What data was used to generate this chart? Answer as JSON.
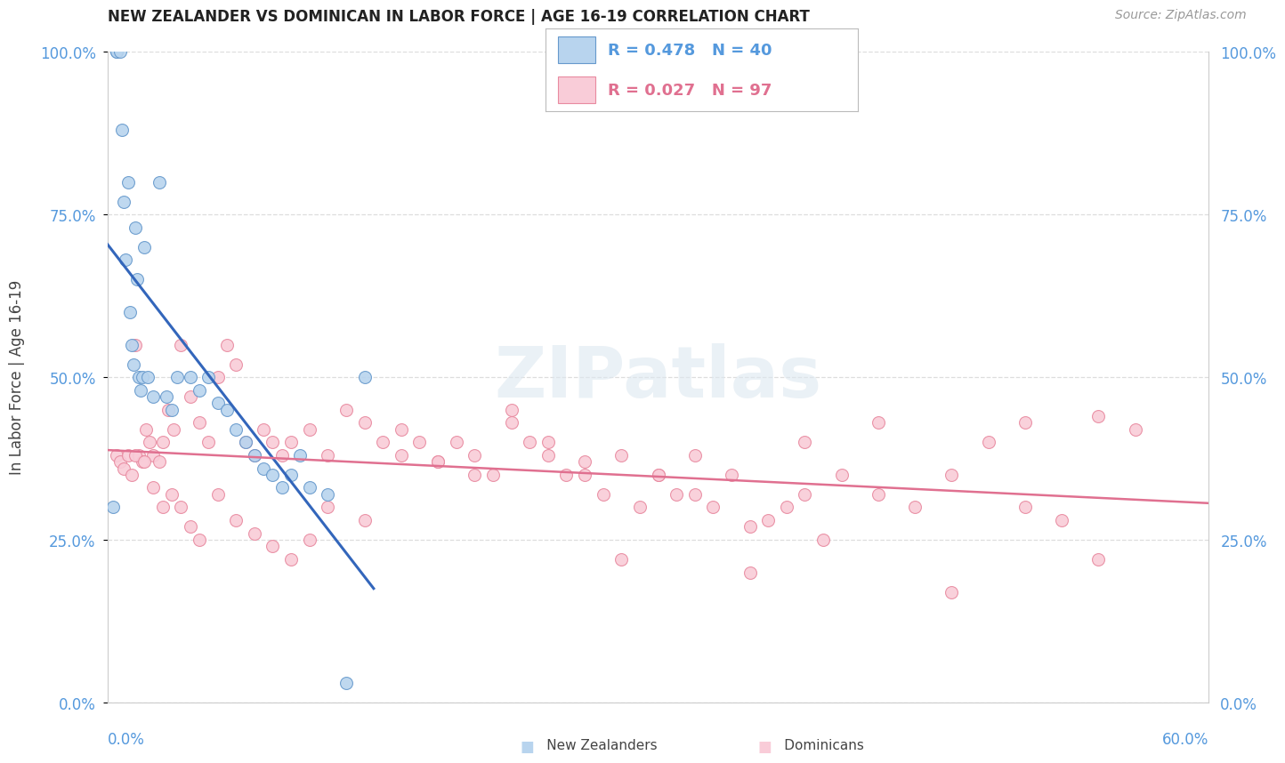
{
  "title": "NEW ZEALANDER VS DOMINICAN IN LABOR FORCE | AGE 16-19 CORRELATION CHART",
  "source": "Source: ZipAtlas.com",
  "ylabel": "In Labor Force | Age 16-19",
  "ytick_labels": [
    "0.0%",
    "25.0%",
    "50.0%",
    "75.0%",
    "100.0%"
  ],
  "ytick_vals": [
    0.0,
    25.0,
    50.0,
    75.0,
    100.0
  ],
  "xtick_left": "0.0%",
  "xtick_right": "60.0%",
  "xlim": [
    0.0,
    60.0
  ],
  "ylim": [
    0.0,
    100.0
  ],
  "watermark": "ZIPatlas",
  "legend_nz_R": "0.478",
  "legend_nz_N": "40",
  "legend_dom_R": "0.027",
  "legend_dom_N": "97",
  "nz_color": "#b8d4ee",
  "nz_edge_color": "#6699cc",
  "nz_line_color": "#3366bb",
  "dom_color": "#f9ccd8",
  "dom_edge_color": "#e88aa0",
  "dom_line_color": "#e07090",
  "background": "#ffffff",
  "grid_color": "#dddddd",
  "title_color": "#222222",
  "tick_color": "#5599dd",
  "nz_x": [
    0.3,
    0.5,
    0.5,
    0.7,
    0.8,
    0.9,
    1.0,
    1.1,
    1.2,
    1.3,
    1.4,
    1.5,
    1.6,
    1.7,
    1.8,
    1.9,
    2.0,
    2.2,
    2.5,
    2.8,
    3.2,
    3.5,
    3.8,
    4.5,
    5.0,
    5.5,
    6.0,
    6.5,
    7.0,
    7.5,
    8.0,
    8.5,
    9.0,
    9.5,
    10.0,
    10.5,
    11.0,
    12.0,
    13.0,
    14.0
  ],
  "nz_y": [
    30.0,
    100.0,
    100.0,
    100.0,
    88.0,
    77.0,
    68.0,
    80.0,
    60.0,
    55.0,
    52.0,
    73.0,
    65.0,
    50.0,
    48.0,
    50.0,
    70.0,
    50.0,
    47.0,
    80.0,
    47.0,
    45.0,
    50.0,
    50.0,
    48.0,
    50.0,
    46.0,
    45.0,
    42.0,
    40.0,
    38.0,
    36.0,
    35.0,
    33.0,
    35.0,
    38.0,
    33.0,
    32.0,
    3.0,
    50.0
  ],
  "dom_x": [
    0.5,
    0.7,
    0.9,
    1.1,
    1.3,
    1.5,
    1.7,
    1.9,
    2.1,
    2.3,
    2.5,
    2.8,
    3.0,
    3.3,
    3.6,
    4.0,
    4.5,
    5.0,
    5.5,
    6.0,
    6.5,
    7.0,
    7.5,
    8.0,
    8.5,
    9.0,
    9.5,
    10.0,
    11.0,
    12.0,
    13.0,
    14.0,
    15.0,
    16.0,
    17.0,
    18.0,
    19.0,
    20.0,
    21.0,
    22.0,
    23.0,
    24.0,
    25.0,
    26.0,
    27.0,
    28.0,
    29.0,
    30.0,
    31.0,
    32.0,
    33.0,
    34.0,
    35.0,
    36.0,
    37.0,
    38.0,
    39.0,
    40.0,
    42.0,
    44.0,
    46.0,
    48.0,
    50.0,
    52.0,
    54.0,
    56.0,
    1.5,
    2.0,
    2.5,
    3.0,
    3.5,
    4.0,
    4.5,
    5.0,
    6.0,
    7.0,
    8.0,
    9.0,
    10.0,
    11.0,
    12.0,
    14.0,
    16.0,
    18.0,
    20.0,
    22.0,
    24.0,
    26.0,
    28.0,
    30.0,
    32.0,
    35.0,
    38.0,
    42.0,
    46.0,
    50.0,
    54.0
  ],
  "dom_y": [
    38.0,
    37.0,
    36.0,
    38.0,
    35.0,
    55.0,
    38.0,
    37.0,
    42.0,
    40.0,
    38.0,
    37.0,
    40.0,
    45.0,
    42.0,
    55.0,
    47.0,
    43.0,
    40.0,
    50.0,
    55.0,
    52.0,
    40.0,
    38.0,
    42.0,
    40.0,
    38.0,
    40.0,
    42.0,
    38.0,
    45.0,
    43.0,
    40.0,
    38.0,
    40.0,
    37.0,
    40.0,
    38.0,
    35.0,
    43.0,
    40.0,
    38.0,
    35.0,
    37.0,
    32.0,
    38.0,
    30.0,
    35.0,
    32.0,
    38.0,
    30.0,
    35.0,
    27.0,
    28.0,
    30.0,
    32.0,
    25.0,
    35.0,
    32.0,
    30.0,
    35.0,
    40.0,
    30.0,
    28.0,
    22.0,
    42.0,
    38.0,
    37.0,
    33.0,
    30.0,
    32.0,
    30.0,
    27.0,
    25.0,
    32.0,
    28.0,
    26.0,
    24.0,
    22.0,
    25.0,
    30.0,
    28.0,
    42.0,
    37.0,
    35.0,
    45.0,
    40.0,
    35.0,
    22.0,
    35.0,
    32.0,
    20.0,
    40.0,
    43.0,
    17.0,
    43.0,
    44.0
  ]
}
